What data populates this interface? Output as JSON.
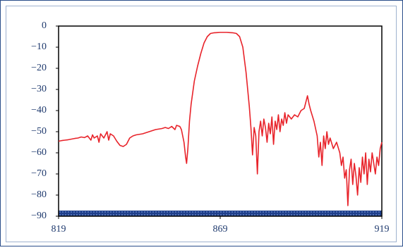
{
  "chart_data": {
    "type": "line",
    "x": [
      819,
      820,
      821,
      822,
      823,
      824,
      825,
      826,
      827,
      828,
      829,
      829.5,
      830,
      831,
      831.5,
      832,
      833,
      834,
      834.5,
      835,
      836,
      837,
      838,
      839,
      840,
      841,
      842,
      843,
      845,
      847,
      849,
      851,
      852,
      853,
      854,
      855,
      855.5,
      856.5,
      857,
      857.8,
      858.3,
      858.6,
      859,
      859.5,
      860,
      861,
      862,
      863,
      864,
      865,
      866,
      867,
      868,
      869,
      870,
      871,
      872,
      873,
      874,
      875,
      876,
      877,
      878,
      878.5,
      879,
      879.5,
      880,
      880.5,
      881,
      881.5,
      882,
      882.5,
      883,
      883.5,
      884,
      884.5,
      885,
      885.5,
      886,
      886.5,
      887,
      887.5,
      888,
      888.5,
      889,
      889.5,
      890,
      891,
      892,
      893,
      894,
      895,
      895.5,
      896,
      896.5,
      897,
      898,
      899,
      899.5,
      900,
      900.5,
      901,
      901.5,
      902,
      902.5,
      903,
      904,
      905,
      906,
      906.5,
      907,
      907.5,
      908,
      908.5,
      909,
      909.5,
      910,
      910.5,
      911,
      911.5,
      912,
      912.5,
      913,
      913.5,
      914,
      914.5,
      915,
      915.5,
      916,
      917,
      917.5,
      918,
      918.5,
      919
    ],
    "series": [
      {
        "color": "#e8232a",
        "values": [
          -54.5,
          -54.2,
          -54,
          -53.8,
          -53.5,
          -53.2,
          -53,
          -52.5,
          -52.8,
          -52,
          -54,
          -51.5,
          -53,
          -52,
          -55,
          -51,
          -53,
          -50,
          -54,
          -51,
          -52,
          -54.5,
          -56.5,
          -57,
          -56,
          -53,
          -52,
          -51.5,
          -51,
          -50,
          -49,
          -48.5,
          -48,
          -48.5,
          -47.5,
          -49,
          -47,
          -47.5,
          -49,
          -55,
          -62,
          -65,
          -58,
          -45,
          -37,
          -26,
          -19,
          -13,
          -8,
          -5,
          -3.5,
          -3.2,
          -3.1,
          -3,
          -3,
          -3,
          -3.1,
          -3.2,
          -3.5,
          -5,
          -10,
          -22,
          -38,
          -48,
          -61,
          -48,
          -52,
          -70,
          -50,
          -45,
          -52,
          -44,
          -48,
          -55,
          -46,
          -51,
          -43,
          -56,
          -45,
          -49,
          -42,
          -50,
          -44,
          -47,
          -41,
          -46,
          -42,
          -44,
          -42,
          -43,
          -40,
          -39,
          -36,
          -33,
          -37,
          -40,
          -45,
          -52,
          -62,
          -55,
          -66,
          -52,
          -58,
          -50,
          -56,
          -53,
          -58,
          -55,
          -60,
          -66,
          -62,
          -72,
          -68,
          -85,
          -68,
          -63,
          -75,
          -65,
          -71,
          -80,
          -67,
          -74,
          -62,
          -70,
          -60,
          -75,
          -63,
          -69,
          -60,
          -70,
          -62,
          -66,
          -58,
          -55
        ]
      }
    ],
    "xlim": [
      819,
      919
    ],
    "xticks": [
      819,
      869,
      919
    ],
    "ylim": [
      -90,
      0
    ],
    "yticks": [
      0,
      {
        "value": -10,
        "label": "−10"
      },
      {
        "value": -20,
        "label": "−20"
      },
      {
        "value": -30,
        "label": "−30"
      },
      {
        "value": -40,
        "label": "−40"
      },
      {
        "value": -50,
        "label": "−50"
      },
      {
        "value": -60,
        "label": "−60"
      },
      {
        "value": -70,
        "label": "−70"
      },
      {
        "value": -80,
        "label": "−80"
      },
      {
        "value": -90,
        "label": "−90"
      }
    ],
    "grid": false
  }
}
